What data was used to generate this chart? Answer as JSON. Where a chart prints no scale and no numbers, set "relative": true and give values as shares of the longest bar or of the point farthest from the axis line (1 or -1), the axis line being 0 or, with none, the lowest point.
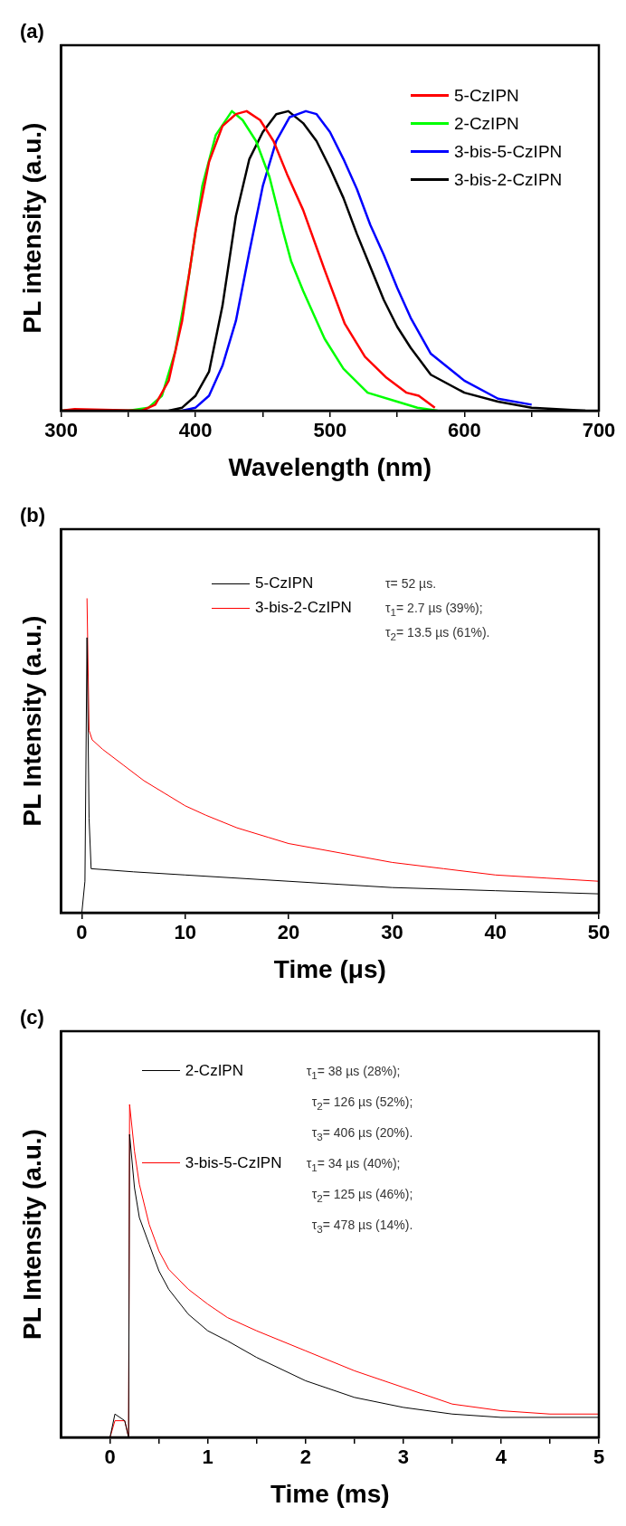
{
  "chart_data": [
    {
      "type": "line",
      "title": "(a)",
      "xlabel": "Wavelength (nm)",
      "ylabel": "PL intensity (a.u.)",
      "relative": true,
      "xlim": [
        300,
        700
      ],
      "xticks": [
        300,
        {
          "value": 350,
          "label": null
        },
        400,
        {
          "value": 450,
          "label": null
        },
        500,
        {
          "value": 550,
          "label": null
        },
        600,
        {
          "value": 650,
          "label": null
        },
        700
      ],
      "grid": false,
      "legend": "top right",
      "marker": "none",
      "line_style": "solid",
      "series": [
        {
          "name": "5-CzIPN",
          "color": "#ff0000",
          "x": [
            300,
            310,
            360,
            370,
            380,
            390,
            400,
            410,
            420,
            430,
            438,
            448,
            458,
            468,
            480,
            496,
            511,
            526,
            542,
            557,
            566,
            578
          ],
          "values": [
            0,
            0.005,
            0,
            0.02,
            0.1,
            0.3,
            0.6,
            0.83,
            0.95,
            0.99,
            1,
            0.97,
            0.9,
            0.79,
            0.67,
            0.47,
            0.29,
            0.18,
            0.11,
            0.06,
            0.05,
            0.01
          ]
        },
        {
          "name": "2-CzIPN",
          "color": "#00ff00",
          "x": [
            300,
            350,
            365,
            375,
            385,
            395,
            405,
            415,
            427,
            435,
            445,
            455,
            465,
            471,
            480,
            490,
            496,
            510,
            528,
            550,
            565,
            580
          ],
          "values": [
            0,
            0,
            0.01,
            0.05,
            0.2,
            0.45,
            0.75,
            0.92,
            1,
            0.97,
            0.9,
            0.78,
            0.6,
            0.5,
            0.4,
            0.3,
            0.24,
            0.14,
            0.06,
            0.03,
            0.01,
            0
          ]
        },
        {
          "name": "3-bis-5-CzIPN",
          "color": "#0000ff",
          "x": [
            390,
            400,
            410,
            420,
            430,
            440,
            450,
            460,
            470,
            482,
            490,
            500,
            510,
            520,
            530,
            540,
            550,
            560,
            575,
            600,
            625,
            650
          ],
          "values": [
            0,
            0.01,
            0.05,
            0.15,
            0.3,
            0.53,
            0.75,
            0.9,
            0.98,
            1,
            0.99,
            0.93,
            0.84,
            0.74,
            0.62,
            0.52,
            0.41,
            0.31,
            0.19,
            0.1,
            0.04,
            0.02
          ]
        },
        {
          "name": "3-bis-2-CzIPN",
          "color": "#000000",
          "x": [
            380,
            390,
            400,
            410,
            420,
            430,
            440,
            450,
            460,
            469,
            480,
            490,
            500,
            510,
            520,
            530,
            540,
            550,
            560,
            575,
            600,
            625,
            650,
            690
          ],
          "values": [
            0,
            0.01,
            0.05,
            0.13,
            0.35,
            0.65,
            0.84,
            0.93,
            0.99,
            1,
            0.96,
            0.9,
            0.81,
            0.71,
            0.59,
            0.48,
            0.37,
            0.28,
            0.21,
            0.12,
            0.06,
            0.03,
            0.01,
            0
          ]
        }
      ]
    },
    {
      "type": "line",
      "title": "(b)",
      "xlabel": "Time (μs)",
      "ylabel": "PL Intensity (a.u.)",
      "relative": true,
      "xlim": [
        -2,
        50
      ],
      "xticks": [
        0,
        10,
        20,
        30,
        40,
        50
      ],
      "grid": false,
      "legend": "top",
      "marker": "none",
      "line_style": "solid",
      "annotations": [
        "τ= 52 µs.",
        "τ$_{1}$= 2.7 µs (39%);",
        "τ$_{2}$= 13.5 µs (61%)."
      ],
      "series": [
        {
          "name": "5-CzIPN",
          "color": "#000000",
          "x": [
            0,
            0.3,
            0.5,
            0.7,
            0.9,
            5,
            10,
            20,
            30,
            40,
            50
          ],
          "values": [
            0,
            0.1,
            0.875,
            0.3,
            0.14,
            0.13,
            0.12,
            0.1,
            0.08,
            0.07,
            0.06
          ]
        },
        {
          "name": "3-bis-2-CzIPN",
          "color": "#ff0000",
          "x": [
            0.5,
            0.7,
            1,
            2,
            4,
            6,
            8,
            10,
            12,
            15,
            18,
            20,
            25,
            30,
            35,
            40,
            45,
            50
          ],
          "values": [
            1,
            0.58,
            0.55,
            0.52,
            0.47,
            0.42,
            0.38,
            0.34,
            0.31,
            0.27,
            0.24,
            0.22,
            0.19,
            0.16,
            0.14,
            0.12,
            0.11,
            0.1
          ]
        }
      ]
    },
    {
      "type": "line",
      "title": "(c)",
      "xlabel": "Time (ms)",
      "ylabel": "PL Intensity (a.u.)",
      "relative": true,
      "xlim": [
        -0.5,
        5
      ],
      "xticks": [
        0,
        {
          "value": 0.5,
          "label": null
        },
        1,
        {
          "value": 1.5,
          "label": null
        },
        2,
        {
          "value": 2.5,
          "label": null
        },
        3,
        {
          "value": 3.5,
          "label": null
        },
        4,
        {
          "value": 4.5,
          "label": null
        },
        5
      ],
      "grid": false,
      "legend": "top left",
      "marker": "none",
      "line_style": "solid",
      "annotations": [
        "τ$_{1}$= 38 µs (28%);",
        "τ$_{2}$= 126 µs (52%);",
        "τ$_{3}$= 406 µs (20%).",
        "τ$_{1}$= 34 µs (40%);",
        "τ$_{2}$= 125 µs (46%);",
        "τ$_{3}$= 478 µs (14%)."
      ],
      "series": [
        {
          "name": "2-CzIPN",
          "color": "#000000",
          "x": [
            0,
            0.05,
            0.15,
            0.19,
            0.2,
            0.25,
            0.3,
            0.4,
            0.5,
            0.6,
            0.8,
            1,
            1.2,
            1.5,
            2,
            2.5,
            3,
            3.5,
            4,
            5
          ],
          "values": [
            0,
            0.07,
            0.05,
            0,
            0.91,
            0.75,
            0.66,
            0.58,
            0.5,
            0.445,
            0.37,
            0.32,
            0.29,
            0.24,
            0.17,
            0.12,
            0.09,
            0.07,
            0.06,
            0.06
          ]
        },
        {
          "name": "3-bis-5-CzIPN",
          "color": "#ff0000",
          "x": [
            0,
            0.05,
            0.15,
            0.19,
            0.2,
            0.25,
            0.3,
            0.4,
            0.5,
            0.6,
            0.8,
            1,
            1.2,
            1.5,
            2,
            2.5,
            3,
            3.5,
            4,
            4.5,
            5
          ],
          "values": [
            0,
            0.05,
            0.05,
            0,
            1,
            0.86,
            0.76,
            0.64,
            0.56,
            0.505,
            0.445,
            0.4,
            0.36,
            0.32,
            0.26,
            0.2,
            0.15,
            0.1,
            0.08,
            0.07,
            0.07
          ]
        }
      ]
    }
  ]
}
